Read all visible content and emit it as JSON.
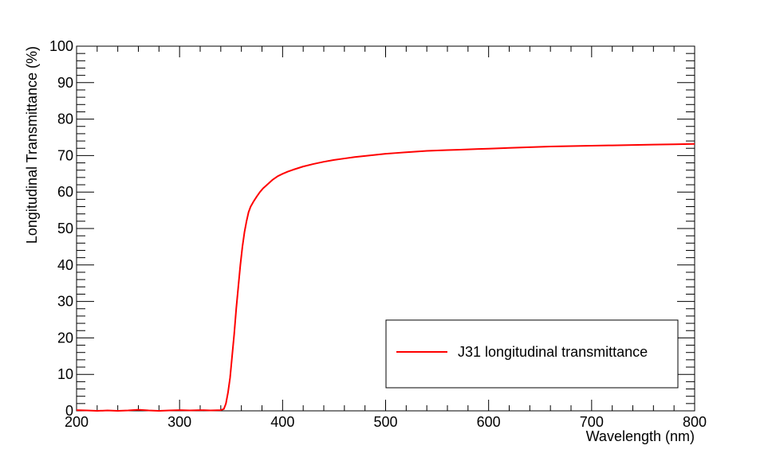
{
  "chart_data": {
    "type": "line",
    "xlabel": "Wavelength (nm)",
    "ylabel": "Longitudinal Transmittance (%)",
    "xlim": [
      200,
      800
    ],
    "ylim": [
      0,
      100
    ],
    "x_ticks": [
      200,
      300,
      400,
      500,
      600,
      700,
      800
    ],
    "y_ticks": [
      0,
      10,
      20,
      30,
      40,
      50,
      60,
      70,
      80,
      90,
      100
    ],
    "grid": false,
    "legend": "bottom-right",
    "series": [
      {
        "name": "J31 longitudinal transmittance",
        "color": "#ff0000",
        "x": [
          200,
          210,
          220,
          230,
          240,
          250,
          260,
          270,
          280,
          290,
          300,
          310,
          320,
          330,
          340,
          343,
          345,
          347,
          349,
          351,
          353,
          355,
          357,
          359,
          361,
          363,
          365,
          367,
          369,
          372,
          375,
          378,
          381,
          385,
          390,
          395,
          400,
          405,
          410,
          420,
          430,
          440,
          450,
          460,
          470,
          480,
          490,
          500,
          510,
          520,
          530,
          540,
          550,
          560,
          570,
          580,
          590,
          600,
          620,
          640,
          660,
          680,
          700,
          720,
          740,
          760,
          780,
          800
        ],
        "y": [
          0.2,
          0.1,
          0.0,
          0.1,
          0.0,
          0.1,
          0.3,
          0.1,
          0.0,
          0.1,
          0.2,
          0.1,
          0.2,
          0.1,
          0.2,
          0.5,
          2,
          5,
          9,
          15,
          21,
          28,
          34,
          40,
          45,
          49,
          52,
          54.5,
          56,
          57.5,
          58.8,
          60,
          61,
          62,
          63.3,
          64.3,
          65,
          65.6,
          66.1,
          67,
          67.7,
          68.3,
          68.8,
          69.2,
          69.6,
          69.9,
          70.2,
          70.5,
          70.7,
          70.9,
          71.1,
          71.3,
          71.4,
          71.5,
          71.6,
          71.7,
          71.8,
          71.9,
          72.1,
          72.3,
          72.5,
          72.6,
          72.7,
          72.8,
          72.9,
          73,
          73.1,
          73.2
        ]
      }
    ]
  }
}
